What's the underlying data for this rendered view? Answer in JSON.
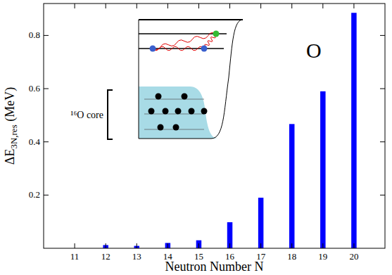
{
  "chart_data": {
    "type": "bar",
    "title": "O",
    "xlabel": "Neutron Number N",
    "ylabel": {
      "main": "ΔE",
      "sub": "3N,res",
      "unit": " (MeV)"
    },
    "x": [
      11,
      12,
      13,
      14,
      15,
      16,
      17,
      18,
      19,
      20
    ],
    "values": [
      0.0,
      0.012,
      0.009,
      0.02,
      0.03,
      0.098,
      0.19,
      0.467,
      0.59,
      0.885
    ],
    "color": "#0000ff",
    "xlim": [
      10,
      21
    ],
    "xticks": [
      11,
      12,
      13,
      14,
      15,
      16,
      17,
      18,
      19,
      20
    ],
    "ylim": [
      0,
      0.92
    ],
    "yticks": [
      0.2,
      0.4,
      0.6,
      0.8
    ],
    "grid": false,
    "annotations": [
      {
        "text": "¹⁶O core"
      }
    ]
  }
}
